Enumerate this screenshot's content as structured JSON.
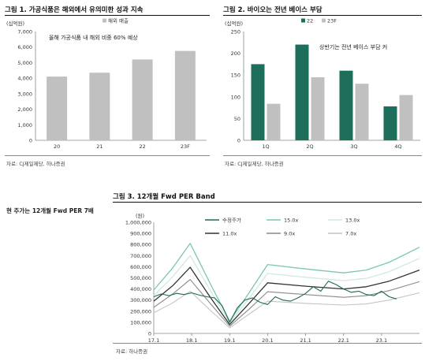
{
  "charts": {
    "fig1": {
      "title": "그림 1. 가공식품은 해외에서 유의미한 성과 지속",
      "source": "자료: CJ제일제당, 하나증권"
    },
    "fig2": {
      "title": "그림 2. 바이오는 전년 베이스 부담",
      "source": "자료: CJ제일제당, 하나증권"
    },
    "fig3": {
      "title": "그림 3. 12개월 Fwd PER Band",
      "source": "자료: 하나증권"
    }
  },
  "side_heading": "현 주가는 12개월 Fwd PER 7배",
  "colors": {
    "bar_gray": "#c0c0c0",
    "bar_teal": "#1e6e5c",
    "price_line": "#1d6a57",
    "band_15x": "#79c9ad",
    "band_13x": "#cfe9df",
    "band_11x": "#333333",
    "band_9x": "#8a8a8a",
    "band_7x": "#c4c4c4"
  },
  "chart_data": [
    {
      "type": "bar",
      "unit_label": "(십억원)",
      "categories": [
        "20",
        "21",
        "22",
        "23F"
      ],
      "series": [
        {
          "name": "해외 매출",
          "values": [
            4100,
            4350,
            5200,
            5750
          ]
        }
      ],
      "ylim": [
        0,
        7000
      ],
      "yticks": [
        0,
        1000,
        2000,
        3000,
        4000,
        5000,
        6000,
        7000
      ],
      "ytick_labels": [
        "0",
        "1,000",
        "2,000",
        "3,000",
        "4,000",
        "5,000",
        "6,000",
        "7,000"
      ],
      "annotation": "올해 가공식품 내 해외 비중 60% 예상",
      "legend_position": "top-center",
      "grid": false
    },
    {
      "type": "bar",
      "unit_label": "(십억원)",
      "categories": [
        "1Q",
        "2Q",
        "3Q",
        "4Q"
      ],
      "series": [
        {
          "name": "22",
          "values": [
            175,
            220,
            160,
            78
          ]
        },
        {
          "name": "23F",
          "values": [
            84,
            145,
            130,
            104
          ]
        }
      ],
      "ylim": [
        0,
        250
      ],
      "yticks": [
        0,
        50,
        100,
        150,
        200,
        250
      ],
      "ytick_labels": [
        "0",
        "50",
        "100",
        "150",
        "200",
        "250"
      ],
      "annotation": "상반기는 전년 베이스 부담 커",
      "legend_position": "top-center",
      "grid": false
    },
    {
      "type": "line",
      "unit_label": "(원)",
      "x_ticks": [
        2017.0,
        2018.0,
        2019.0,
        2020.0,
        2021.0,
        2022.0,
        2023.0
      ],
      "x_tick_labels": [
        "17.1",
        "18.1",
        "19.1",
        "20.1",
        "21.1",
        "22.1",
        "23.1"
      ],
      "xlim": [
        2017.0,
        2024.0
      ],
      "ylim": [
        0,
        1000000
      ],
      "yticks": [
        0,
        100000,
        200000,
        300000,
        400000,
        500000,
        600000,
        700000,
        800000,
        900000,
        1000000
      ],
      "ytick_labels": [
        "0",
        "100,000",
        "200,000",
        "300,000",
        "400,000",
        "500,000",
        "600,000",
        "700,000",
        "800,000",
        "900,000",
        "1,000,000"
      ],
      "grid": false,
      "legend_position": "top",
      "series": [
        {
          "name": "15.0x",
          "key": "band_15x",
          "x": [
            2017.0,
            2017.5,
            2017.96,
            2018.5,
            2019.0,
            2019.5,
            2020.0,
            2021.0,
            2022.0,
            2022.6,
            2023.2,
            2024.0
          ],
          "y": [
            390000,
            590000,
            810000,
            440000,
            110000,
            360000,
            620000,
            580000,
            545000,
            570000,
            640000,
            775000
          ]
        },
        {
          "name": "13.0x",
          "key": "band_13x",
          "x": [
            2017.0,
            2017.5,
            2017.96,
            2018.5,
            2019.0,
            2019.5,
            2020.0,
            2021.0,
            2022.0,
            2022.6,
            2023.2,
            2024.0
          ],
          "y": [
            340000,
            510000,
            700000,
            380000,
            95000,
            310000,
            540000,
            505000,
            475000,
            495000,
            555000,
            675000
          ]
        },
        {
          "name": "11.0x",
          "key": "band_11x",
          "x": [
            2017.0,
            2017.5,
            2017.96,
            2018.5,
            2019.0,
            2019.5,
            2020.0,
            2021.0,
            2022.0,
            2022.6,
            2023.2,
            2024.0
          ],
          "y": [
            290000,
            430000,
            595000,
            320000,
            80000,
            265000,
            455000,
            425000,
            400000,
            420000,
            470000,
            570000
          ]
        },
        {
          "name": "9.0x",
          "key": "band_9x",
          "x": [
            2017.0,
            2017.5,
            2017.96,
            2018.5,
            2019.0,
            2019.5,
            2020.0,
            2021.0,
            2022.0,
            2022.6,
            2023.2,
            2024.0
          ],
          "y": [
            235000,
            355000,
            485000,
            265000,
            65000,
            215000,
            375000,
            350000,
            325000,
            340000,
            385000,
            465000
          ]
        },
        {
          "name": "7.0x",
          "key": "band_7x",
          "x": [
            2017.0,
            2017.5,
            2017.96,
            2018.5,
            2019.0,
            2019.5,
            2020.0,
            2021.0,
            2022.0,
            2022.6,
            2023.2,
            2024.0
          ],
          "y": [
            185000,
            275000,
            380000,
            205000,
            50000,
            170000,
            290000,
            270000,
            255000,
            265000,
            300000,
            365000
          ]
        },
        {
          "name": "수정주가",
          "key": "price_line",
          "x": [
            2017.0,
            2017.2,
            2017.4,
            2017.6,
            2017.8,
            2018.0,
            2018.2,
            2018.4,
            2018.6,
            2018.8,
            2019.0,
            2019.2,
            2019.4,
            2019.6,
            2019.8,
            2020.0,
            2020.2,
            2020.4,
            2020.6,
            2020.8,
            2021.0,
            2021.2,
            2021.4,
            2021.6,
            2021.8,
            2022.0,
            2022.2,
            2022.4,
            2022.6,
            2022.8,
            2023.0,
            2023.2,
            2023.4
          ],
          "y": [
            330000,
            355000,
            340000,
            360000,
            350000,
            365000,
            345000,
            330000,
            320000,
            250000,
            100000,
            230000,
            300000,
            320000,
            280000,
            260000,
            330000,
            300000,
            290000,
            320000,
            360000,
            420000,
            380000,
            470000,
            440000,
            400000,
            370000,
            380000,
            350000,
            340000,
            380000,
            330000,
            310000
          ]
        }
      ]
    }
  ]
}
